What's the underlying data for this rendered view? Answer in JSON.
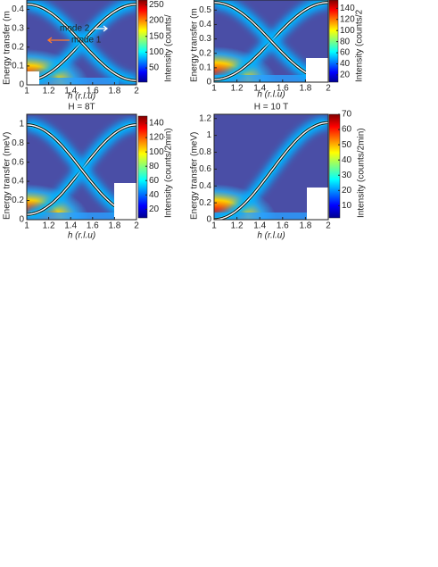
{
  "chart_data": [
    {
      "type": "heatmap",
      "xlabel": "h (r.l.u)",
      "ylabel": "Energy transfer (m",
      "colorbar_label": "Intensity (counts/",
      "xlim": [
        1,
        2
      ],
      "xticks": [
        1,
        1.2,
        1.4,
        1.6,
        1.8,
        2
      ],
      "ylim": [
        0,
        0.45
      ],
      "yticks": [
        0,
        0.1,
        0.2,
        0.3,
        0.4
      ],
      "clim": [
        5,
        265
      ],
      "cticks": [
        50,
        100,
        150,
        200,
        250
      ],
      "annotations": [
        {
          "text": "mode 2",
          "color": "#ffffff"
        },
        {
          "text": "mode 1",
          "color": "#ff7a2a"
        }
      ]
    },
    {
      "type": "heatmap",
      "xlabel": "h (r.l.u)",
      "ylabel": "Energy transfer (m",
      "colorbar_label": "Intensity (counts/2",
      "xlim": [
        1,
        2
      ],
      "xticks": [
        1,
        1.2,
        1.4,
        1.6,
        1.8,
        2
      ],
      "ylim": [
        0,
        0.57
      ],
      "yticks": [
        0,
        0.1,
        0.2,
        0.3,
        0.4,
        0.5
      ],
      "clim": [
        7,
        155
      ],
      "cticks": [
        20,
        40,
        60,
        80,
        100,
        120,
        140
      ]
    },
    {
      "type": "heatmap",
      "title": "H = 8T",
      "xlabel": "h (r.l.u)",
      "ylabel": "Energy transfer (meV)",
      "colorbar_label": "Intensity (counts/2min)",
      "xlim": [
        1,
        2
      ],
      "xticks": [
        1,
        1.2,
        1.4,
        1.6,
        1.8,
        2
      ],
      "ylim": [
        0,
        1.1
      ],
      "yticks": [
        0,
        0.2,
        0.4,
        0.6,
        0.8,
        1
      ],
      "clim": [
        8,
        150
      ],
      "cticks": [
        20,
        40,
        60,
        80,
        100,
        120,
        140
      ]
    },
    {
      "type": "heatmap",
      "title": "H = 10 T",
      "xlabel": "h (r.l.u)",
      "ylabel": "Energy transfer (meV)",
      "colorbar_label": "Intensity (counts/2min)",
      "xlim": [
        1,
        2
      ],
      "xticks": [
        1,
        1.2,
        1.4,
        1.6,
        1.8,
        2
      ],
      "ylim": [
        0,
        1.25
      ],
      "yticks": [
        0,
        0.2,
        0.4,
        0.6,
        0.8,
        1,
        1.2
      ],
      "clim": [
        2,
        70
      ],
      "cticks": [
        10,
        20,
        30,
        40,
        50,
        60,
        70
      ]
    }
  ]
}
